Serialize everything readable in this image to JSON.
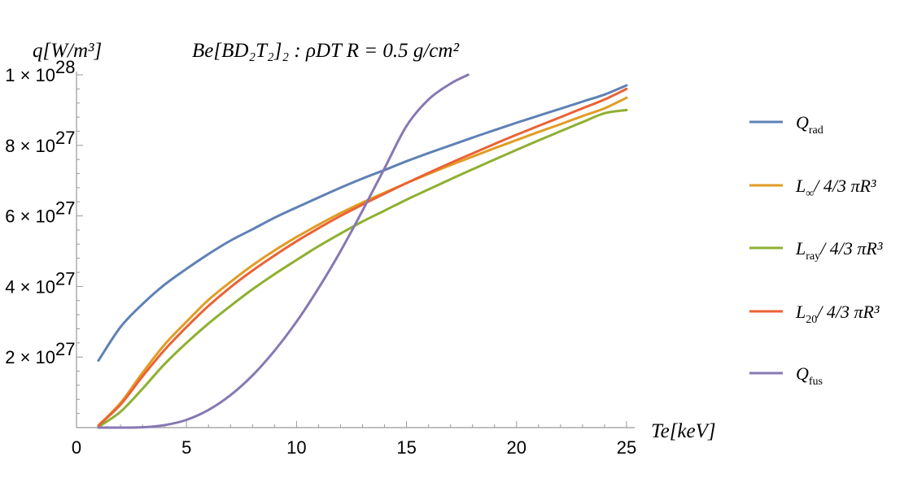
{
  "chart_data": {
    "type": "line",
    "title": "Be[BD₂T₂]₂ : ρDT R = 0.5 g/cm²",
    "ylabel": "q[W/m³]",
    "xlabel": "Te[keV]",
    "xlim": [
      0,
      25
    ],
    "ylim": [
      0,
      1e+28
    ],
    "x_ticks": [
      0,
      5,
      10,
      15,
      20,
      25
    ],
    "y_ticks": [
      {
        "value": 2e+27,
        "label_mantissa": "2 × 10",
        "label_exp": "27"
      },
      {
        "value": 4e+27,
        "label_mantissa": "4 × 10",
        "label_exp": "27"
      },
      {
        "value": 6e+27,
        "label_mantissa": "6 × 10",
        "label_exp": "27"
      },
      {
        "value": 8e+27,
        "label_mantissa": "8 × 10",
        "label_exp": "27"
      },
      {
        "value": 1e+28,
        "label_mantissa": "1 × 10",
        "label_exp": "28"
      }
    ],
    "grid": false,
    "legend_position": "right",
    "series": [
      {
        "name": "Q_rad",
        "label_main": "Q",
        "label_sub": "rad",
        "label_tail": "",
        "color": "#5e81b5",
        "x": [
          1,
          2,
          3,
          4,
          5,
          6,
          7,
          8,
          9,
          10,
          11,
          12,
          13,
          14,
          15,
          16,
          17,
          18,
          19,
          20,
          21,
          22,
          23,
          24,
          25
        ],
        "y": [
          1.9e+27,
          2.85e+27,
          3.5e+27,
          4.05e+27,
          4.5e+27,
          4.92e+27,
          5.3e+27,
          5.62e+27,
          5.95e+27,
          6.24e+27,
          6.52e+27,
          6.8e+27,
          7.06e+27,
          7.3e+27,
          7.55e+27,
          7.78e+27,
          8e+27,
          8.22e+27,
          8.43e+27,
          8.64e+27,
          8.84e+27,
          9.04e+27,
          9.24e+27,
          9.44e+27,
          9.7e+27
        ]
      },
      {
        "name": "L_inf",
        "label_main": "L",
        "label_sub": "∞",
        "label_tail": "/ 4/3 πR³",
        "color": "#e19c24",
        "x": [
          1,
          2,
          3,
          4,
          5,
          6,
          7,
          8,
          9,
          10,
          11,
          12,
          13,
          14,
          15,
          16,
          17,
          18,
          19,
          20,
          21,
          22,
          23,
          24,
          25
        ],
        "y": [
          6e+25,
          7e+26,
          1.55e+27,
          2.35e+27,
          3e+27,
          3.62e+27,
          4.13e+27,
          4.6e+27,
          5.02e+27,
          5.4e+27,
          5.75e+27,
          6.08e+27,
          6.38e+27,
          6.66e+27,
          6.93e+27,
          7.19e+27,
          7.44e+27,
          7.68e+27,
          7.92e+27,
          8.15e+27,
          8.38e+27,
          8.6e+27,
          8.83e+27,
          9.05e+27,
          9.35e+27
        ]
      },
      {
        "name": "L_ray",
        "label_main": "L",
        "label_sub": "ray",
        "label_tail": "/ 4/3 πR³",
        "color": "#8fb032",
        "x": [
          1,
          2,
          3,
          4,
          5,
          6,
          7,
          8,
          9,
          10,
          11,
          12,
          13,
          14,
          15,
          16,
          17,
          18,
          19,
          20,
          21,
          22,
          23,
          24,
          25
        ],
        "y": [
          2e+25,
          4.5e+26,
          1.1e+27,
          1.8e+27,
          2.4e+27,
          2.95e+27,
          3.45e+27,
          3.92e+27,
          4.35e+27,
          4.75e+27,
          5.14e+27,
          5.5e+27,
          5.84e+27,
          6.15e+27,
          6.46e+27,
          6.75e+27,
          7.04e+27,
          7.32e+27,
          7.6e+27,
          7.87e+27,
          8.14e+27,
          8.4e+27,
          8.66e+27,
          8.91e+27,
          9e+27
        ]
      },
      {
        "name": "L_20",
        "label_main": "L",
        "label_sub": "20",
        "label_tail": "/ 4/3 πR³",
        "color": "#eb6235",
        "x": [
          1,
          2,
          3,
          4,
          5,
          6,
          7,
          8,
          9,
          10,
          11,
          12,
          13,
          14,
          15,
          16,
          17,
          18,
          19,
          20,
          21,
          22,
          23,
          24,
          25
        ],
        "y": [
          6e+25,
          6.5e+26,
          1.45e+27,
          2.2e+27,
          2.85e+27,
          3.45e+27,
          3.98e+27,
          4.45e+27,
          4.88e+27,
          5.28e+27,
          5.65e+27,
          6e+27,
          6.32e+27,
          6.63e+27,
          6.93e+27,
          7.22e+27,
          7.5e+27,
          7.77e+27,
          8.04e+27,
          8.3e+27,
          8.55e+27,
          8.8e+27,
          9.05e+27,
          9.3e+27,
          9.6e+27
        ]
      },
      {
        "name": "Q_fus",
        "label_main": "Q",
        "label_sub": "fus",
        "label_tail": "",
        "color": "#8778b3",
        "x": [
          1,
          2,
          3,
          4,
          5,
          6,
          7,
          8,
          9,
          10,
          11,
          12,
          13,
          14,
          15,
          16,
          17,
          17.8
        ],
        "y": [
          0.0,
          0.0,
          1e+25,
          7e+25,
          2.2e+26,
          5e+26,
          9.2e+26,
          1.48e+27,
          2.18e+27,
          3e+27,
          3.95e+27,
          5e+27,
          6.15e+27,
          7.35e+27,
          8.55e+27,
          9.3e+27,
          9.75e+27,
          1e+28
        ]
      }
    ]
  }
}
